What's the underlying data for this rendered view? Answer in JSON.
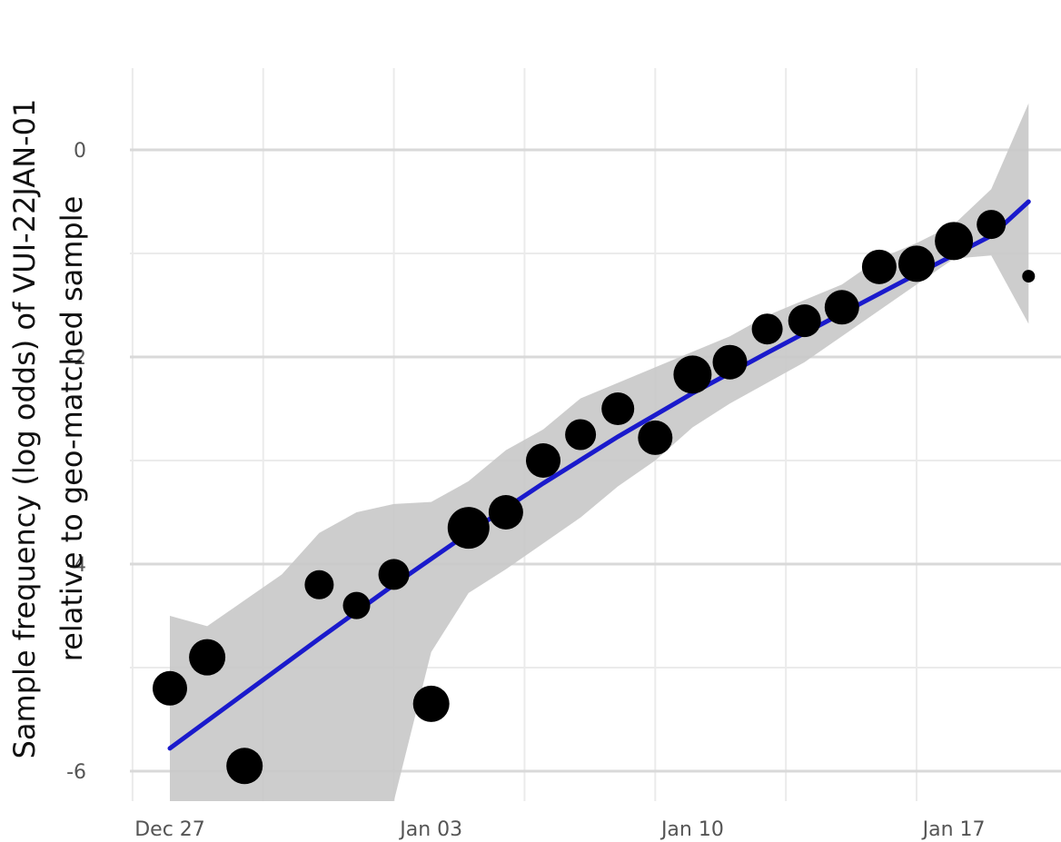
{
  "chart_data": {
    "type": "scatter",
    "title": "",
    "xlabel": "",
    "ylabel_lines": [
      "Sample frequency (log odds) of VUI-22JAN-01",
      "relative to geo-matched sample"
    ],
    "x_ticks": [
      {
        "date": "2021-12-27",
        "label": "Dec 27"
      },
      {
        "date": "2022-01-03",
        "label": "Jan 03"
      },
      {
        "date": "2022-01-10",
        "label": "Jan 10"
      },
      {
        "date": "2022-01-17",
        "label": "Jan 17"
      }
    ],
    "y_ticks": [
      {
        "value": 0,
        "label": "0"
      },
      {
        "value": -2,
        "label": "-2"
      },
      {
        "value": -4,
        "label": "-4"
      },
      {
        "value": -6,
        "label": "-6"
      }
    ],
    "xlim": [
      "2021-12-26",
      "2022-01-19"
    ],
    "ylim": [
      -6.3,
      0.8
    ],
    "grid": true,
    "points": [
      {
        "x": "2021-12-27",
        "y": -5.2,
        "size": 0.75
      },
      {
        "x": "2021-12-28",
        "y": -4.9,
        "size": 0.8
      },
      {
        "x": "2021-12-29",
        "y": -5.95,
        "size": 0.8
      },
      {
        "x": "2021-12-31",
        "y": -4.2,
        "size": 0.6
      },
      {
        "x": "2022-01-01",
        "y": -4.4,
        "size": 0.55
      },
      {
        "x": "2022-01-02",
        "y": -4.1,
        "size": 0.65
      },
      {
        "x": "2022-01-03",
        "y": -5.35,
        "size": 0.8
      },
      {
        "x": "2022-01-04",
        "y": -3.65,
        "size": 0.95
      },
      {
        "x": "2022-01-05",
        "y": -3.5,
        "size": 0.75
      },
      {
        "x": "2022-01-06",
        "y": -3.0,
        "size": 0.75
      },
      {
        "x": "2022-01-07",
        "y": -2.75,
        "size": 0.65
      },
      {
        "x": "2022-01-08",
        "y": -2.5,
        "size": 0.7
      },
      {
        "x": "2022-01-09",
        "y": -2.78,
        "size": 0.75
      },
      {
        "x": "2022-01-10",
        "y": -2.17,
        "size": 0.85
      },
      {
        "x": "2022-01-11",
        "y": -2.05,
        "size": 0.75
      },
      {
        "x": "2022-01-12",
        "y": -1.73,
        "size": 0.65
      },
      {
        "x": "2022-01-13",
        "y": -1.65,
        "size": 0.7
      },
      {
        "x": "2022-01-14",
        "y": -1.52,
        "size": 0.75
      },
      {
        "x": "2022-01-15",
        "y": -1.13,
        "size": 0.75
      },
      {
        "x": "2022-01-16",
        "y": -1.1,
        "size": 0.8
      },
      {
        "x": "2022-01-17",
        "y": -0.88,
        "size": 0.85
      },
      {
        "x": "2022-01-18",
        "y": -0.72,
        "size": 0.6
      },
      {
        "x": "2022-01-19",
        "y": -1.22,
        "size": 0.15
      }
    ],
    "fit_line": {
      "color": "#1a1acc",
      "points": [
        {
          "x": "2021-12-27",
          "y": -5.78
        },
        {
          "x": "2021-12-29",
          "y": -5.25
        },
        {
          "x": "2021-12-31",
          "y": -4.72
        },
        {
          "x": "2022-01-02",
          "y": -4.2
        },
        {
          "x": "2022-01-04",
          "y": -3.7
        },
        {
          "x": "2022-01-06",
          "y": -3.22
        },
        {
          "x": "2022-01-08",
          "y": -2.77
        },
        {
          "x": "2022-01-10",
          "y": -2.35
        },
        {
          "x": "2022-01-12",
          "y": -1.96
        },
        {
          "x": "2022-01-14",
          "y": -1.58
        },
        {
          "x": "2022-01-16",
          "y": -1.2
        },
        {
          "x": "2022-01-18",
          "y": -0.83
        },
        {
          "x": "2022-01-19",
          "y": -0.5
        }
      ]
    },
    "confidence_band": {
      "color": "#c8c8c8",
      "upper": [
        {
          "x": "2021-12-27",
          "y": -4.5
        },
        {
          "x": "2021-12-28",
          "y": -4.6
        },
        {
          "x": "2021-12-29",
          "y": -4.35
        },
        {
          "x": "2021-12-30",
          "y": -4.1
        },
        {
          "x": "2021-12-31",
          "y": -3.7
        },
        {
          "x": "2022-01-01",
          "y": -3.5
        },
        {
          "x": "2022-01-02",
          "y": -3.42
        },
        {
          "x": "2022-01-03",
          "y": -3.4
        },
        {
          "x": "2022-01-04",
          "y": -3.2
        },
        {
          "x": "2022-01-05",
          "y": -2.9
        },
        {
          "x": "2022-01-06",
          "y": -2.7
        },
        {
          "x": "2022-01-07",
          "y": -2.4
        },
        {
          "x": "2022-01-08",
          "y": -2.25
        },
        {
          "x": "2022-01-09",
          "y": -2.1
        },
        {
          "x": "2022-01-10",
          "y": -1.95
        },
        {
          "x": "2022-01-11",
          "y": -1.8
        },
        {
          "x": "2022-01-12",
          "y": -1.6
        },
        {
          "x": "2022-01-13",
          "y": -1.45
        },
        {
          "x": "2022-01-14",
          "y": -1.3
        },
        {
          "x": "2022-01-15",
          "y": -1.05
        },
        {
          "x": "2022-01-16",
          "y": -0.9
        },
        {
          "x": "2022-01-17",
          "y": -0.72
        },
        {
          "x": "2022-01-18",
          "y": -0.38
        },
        {
          "x": "2022-01-19",
          "y": 0.45
        }
      ],
      "lower": [
        {
          "x": "2022-01-19",
          "y": -1.68
        },
        {
          "x": "2022-01-18",
          "y": -1.02
        },
        {
          "x": "2022-01-17",
          "y": -1.05
        },
        {
          "x": "2022-01-16",
          "y": -1.3
        },
        {
          "x": "2022-01-15",
          "y": -1.55
        },
        {
          "x": "2022-01-14",
          "y": -1.8
        },
        {
          "x": "2022-01-13",
          "y": -2.05
        },
        {
          "x": "2022-01-12",
          "y": -2.25
        },
        {
          "x": "2022-01-11",
          "y": -2.45
        },
        {
          "x": "2022-01-10",
          "y": -2.68
        },
        {
          "x": "2022-01-09",
          "y": -3.0
        },
        {
          "x": "2022-01-08",
          "y": -3.25
        },
        {
          "x": "2022-01-07",
          "y": -3.55
        },
        {
          "x": "2022-01-06",
          "y": -3.8
        },
        {
          "x": "2022-01-05",
          "y": -4.05
        },
        {
          "x": "2022-01-04",
          "y": -4.28
        },
        {
          "x": "2022-01-03",
          "y": -4.85
        },
        {
          "x": "2022-01-02",
          "y": -6.3
        },
        {
          "x": "2021-12-27",
          "y": -6.3
        }
      ]
    }
  }
}
